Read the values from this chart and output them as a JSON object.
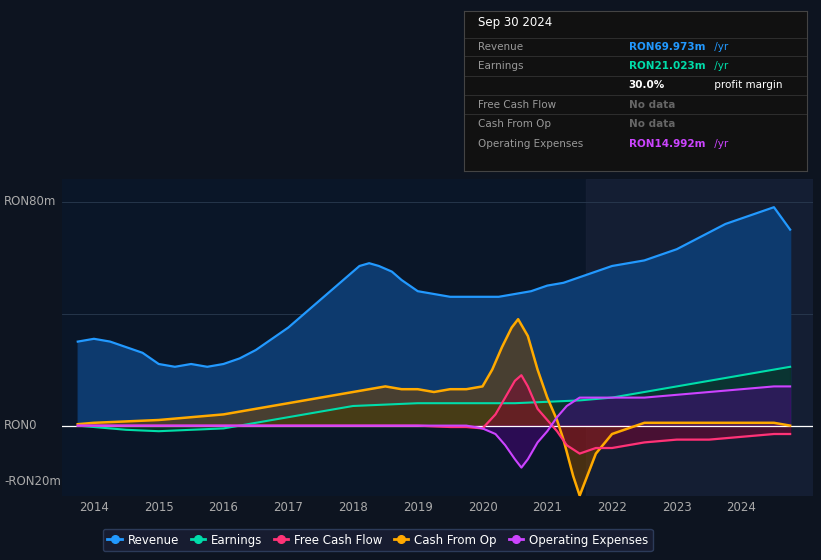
{
  "bg_color": "#0d1420",
  "plot_bg": "#0a1628",
  "ylabel_80": "RON80m",
  "ylabel_0": "RON0",
  "ylabel_neg20": "-RON20m",
  "x_ticks": [
    2014,
    2015,
    2016,
    2017,
    2018,
    2019,
    2020,
    2021,
    2022,
    2023,
    2024
  ],
  "ylim": [
    -25,
    88
  ],
  "revenue_color": "#2299ff",
  "earnings_color": "#00ddaa",
  "fcf_color": "#ff3377",
  "cashfromop_color": "#ffaa00",
  "opex_color": "#cc44ff",
  "legend_items": [
    {
      "label": "Revenue",
      "color": "#2299ff"
    },
    {
      "label": "Earnings",
      "color": "#00ddaa"
    },
    {
      "label": "Free Cash Flow",
      "color": "#ff3377"
    },
    {
      "label": "Cash From Op",
      "color": "#ffaa00"
    },
    {
      "label": "Operating Expenses",
      "color": "#cc44ff"
    }
  ],
  "revenue_x": [
    2013.75,
    2014.0,
    2014.25,
    2014.5,
    2014.75,
    2015.0,
    2015.25,
    2015.5,
    2015.75,
    2016.0,
    2016.25,
    2016.5,
    2016.75,
    2017.0,
    2017.25,
    2017.5,
    2017.75,
    2018.0,
    2018.1,
    2018.25,
    2018.4,
    2018.6,
    2018.75,
    2019.0,
    2019.25,
    2019.5,
    2019.75,
    2020.0,
    2020.25,
    2020.5,
    2020.75,
    2021.0,
    2021.25,
    2021.5,
    2021.75,
    2022.0,
    2022.25,
    2022.5,
    2022.75,
    2023.0,
    2023.25,
    2023.5,
    2023.75,
    2024.0,
    2024.25,
    2024.5,
    2024.75
  ],
  "revenue_y": [
    30,
    31,
    30,
    28,
    26,
    22,
    21,
    22,
    21,
    22,
    24,
    27,
    31,
    35,
    40,
    45,
    50,
    55,
    57,
    58,
    57,
    55,
    52,
    48,
    47,
    46,
    46,
    46,
    46,
    47,
    48,
    50,
    51,
    53,
    55,
    57,
    58,
    59,
    61,
    63,
    66,
    69,
    72,
    74,
    76,
    78,
    70
  ],
  "earnings_x": [
    2013.75,
    2014.0,
    2014.5,
    2015.0,
    2015.5,
    2016.0,
    2016.5,
    2017.0,
    2017.5,
    2018.0,
    2018.5,
    2019.0,
    2019.5,
    2020.0,
    2020.5,
    2021.0,
    2021.5,
    2022.0,
    2022.5,
    2023.0,
    2023.5,
    2024.0,
    2024.5,
    2024.75
  ],
  "earnings_y": [
    0,
    -0.5,
    -1.5,
    -2,
    -1.5,
    -1,
    1,
    3,
    5,
    7,
    7.5,
    8,
    8,
    8,
    8,
    8.5,
    9,
    10,
    12,
    14,
    16,
    18,
    20,
    21
  ],
  "cashfromop_x": [
    2013.75,
    2014.0,
    2014.5,
    2015.0,
    2015.5,
    2016.0,
    2016.5,
    2017.0,
    2017.5,
    2018.0,
    2018.25,
    2018.5,
    2018.75,
    2019.0,
    2019.25,
    2019.5,
    2019.75,
    2020.0,
    2020.15,
    2020.3,
    2020.45,
    2020.55,
    2020.7,
    2020.85,
    2021.0,
    2021.15,
    2021.25,
    2021.4,
    2021.5,
    2021.75,
    2022.0,
    2022.5,
    2023.0,
    2023.5,
    2024.0,
    2024.5,
    2024.75
  ],
  "cashfromop_y": [
    0.5,
    1,
    1.5,
    2,
    3,
    4,
    6,
    8,
    10,
    12,
    13,
    14,
    13,
    13,
    12,
    13,
    13,
    14,
    20,
    28,
    35,
    38,
    32,
    20,
    10,
    2,
    -5,
    -18,
    -25,
    -10,
    -3,
    1,
    1,
    1,
    1,
    1,
    0
  ],
  "fcf_x": [
    2013.75,
    2014.0,
    2019.0,
    2019.5,
    2019.75,
    2020.0,
    2020.2,
    2020.35,
    2020.5,
    2020.6,
    2020.7,
    2020.85,
    2021.0,
    2021.15,
    2021.3,
    2021.5,
    2021.75,
    2022.0,
    2022.5,
    2023.0,
    2023.5,
    2024.0,
    2024.5,
    2024.75
  ],
  "fcf_y": [
    0,
    0,
    0,
    -0.5,
    -0.5,
    -1,
    4,
    10,
    16,
    18,
    14,
    6,
    2,
    -2,
    -7,
    -10,
    -8,
    -8,
    -6,
    -5,
    -5,
    -4,
    -3,
    -3
  ],
  "opex_x": [
    2013.75,
    2014.0,
    2019.0,
    2019.5,
    2019.75,
    2020.0,
    2020.2,
    2020.35,
    2020.5,
    2020.6,
    2020.7,
    2020.85,
    2021.0,
    2021.15,
    2021.3,
    2021.5,
    2021.75,
    2022.0,
    2022.5,
    2023.0,
    2023.5,
    2024.0,
    2024.5,
    2024.75
  ],
  "opex_y": [
    0,
    0,
    0,
    0,
    0,
    -1,
    -3,
    -7,
    -12,
    -15,
    -12,
    -6,
    -2,
    3,
    7,
    10,
    10,
    10,
    10,
    11,
    12,
    13,
    14,
    14
  ],
  "shade_start": 2021.6
}
